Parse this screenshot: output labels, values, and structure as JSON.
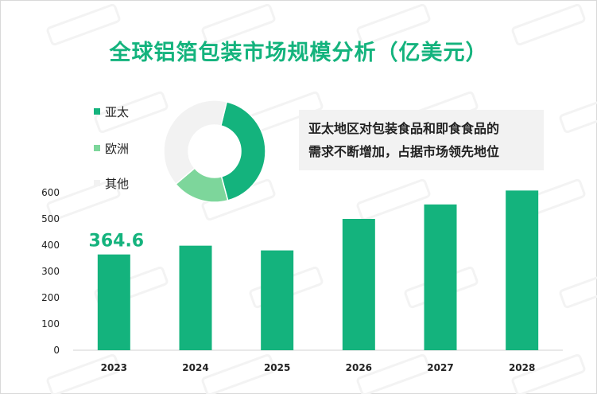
{
  "chart_data": [
    {
      "type": "bar",
      "title": "全球铝箔包装市场规模分析（亿美元）",
      "categories": [
        "2023",
        "2024",
        "2025",
        "2026",
        "2027",
        "2028"
      ],
      "values": [
        364.6,
        398,
        380,
        500,
        555,
        608
      ],
      "ylim": [
        0,
        600
      ],
      "yticks": [
        0,
        100,
        200,
        300,
        400,
        500,
        600
      ],
      "data_labels": [
        {
          "index": 0,
          "text": "364.6"
        }
      ],
      "grid": false,
      "bar_color": "#14b37d"
    },
    {
      "type": "pie",
      "donut": true,
      "legend_position": "left",
      "slices": [
        {
          "name": "亚太",
          "value": 42,
          "color": "#14b37d"
        },
        {
          "name": "欧洲",
          "value": 18,
          "color": "#7dd69b"
        },
        {
          "name": "其他",
          "value": 40,
          "color": "#f2f2f2"
        }
      ]
    }
  ],
  "callout": {
    "line1": "亚太地区对包装食品和即食食品的",
    "line2": "需求不断增加，占据市场领先地位"
  }
}
